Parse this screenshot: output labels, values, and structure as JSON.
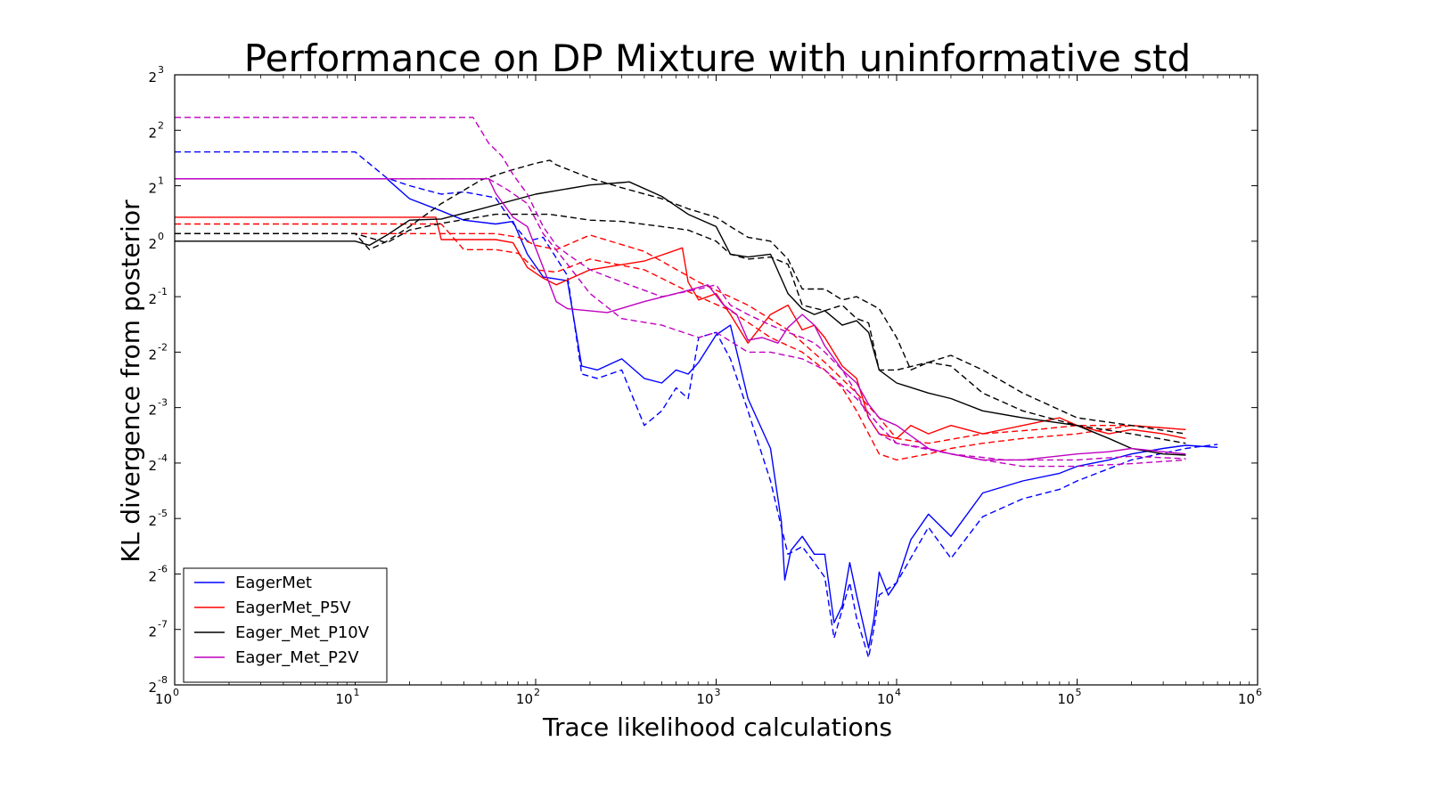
{
  "chart_data": {
    "type": "line",
    "title": "Performance on DP Mixture with uninformative std",
    "xlabel": "Trace likelihood calculations",
    "ylabel": "KL divergence from posterior",
    "x_scale": "log10",
    "y_scale": "log2",
    "xlim": [
      1,
      1000000
    ],
    "ylim": [
      0.00390625,
      8
    ],
    "x_ticks": [
      {
        "base": "10",
        "exp": "0"
      },
      {
        "base": "10",
        "exp": "1"
      },
      {
        "base": "10",
        "exp": "2"
      },
      {
        "base": "10",
        "exp": "3"
      },
      {
        "base": "10",
        "exp": "4"
      },
      {
        "base": "10",
        "exp": "5"
      },
      {
        "base": "10",
        "exp": "6"
      }
    ],
    "y_ticks": [
      {
        "base": "2",
        "exp": "-8"
      },
      {
        "base": "2",
        "exp": "-7"
      },
      {
        "base": "2",
        "exp": "-6"
      },
      {
        "base": "2",
        "exp": "-5"
      },
      {
        "base": "2",
        "exp": "-4"
      },
      {
        "base": "2",
        "exp": "-3"
      },
      {
        "base": "2",
        "exp": "-2"
      },
      {
        "base": "2",
        "exp": "-1"
      },
      {
        "base": "2",
        "exp": "0"
      },
      {
        "base": "2",
        "exp": "1"
      },
      {
        "base": "2",
        "exp": "2"
      },
      {
        "base": "2",
        "exp": "3"
      }
    ],
    "grid": false,
    "legend_position": "lower-left",
    "legend": [
      {
        "label": "EagerMet",
        "color": "#0000ff"
      },
      {
        "label": "EagerMet_P5V",
        "color": "#ff0000"
      },
      {
        "label": "Eager_Met_P10V",
        "color": "#000000"
      },
      {
        "label": "Eager_Met_P2V",
        "color": "#bf00bf"
      }
    ],
    "series": [
      {
        "name": "EagerMet",
        "color": "#0000ff",
        "dash": "solid",
        "x": [
          1,
          15,
          20,
          30,
          40,
          60,
          75,
          90,
          110,
          150,
          180,
          220,
          300,
          400,
          500,
          600,
          700,
          800,
          1000,
          1200,
          1500,
          2000,
          2300,
          2400,
          2600,
          3000,
          3500,
          4000,
          4500,
          5000,
          5500,
          6000,
          7000,
          7500,
          8000,
          9000,
          10000,
          12000,
          15000,
          20000,
          30000,
          50000,
          80000,
          100000,
          150000,
          200000,
          300000,
          400000,
          600000
        ],
        "y": [
          2.18,
          2.18,
          1.7,
          1.46,
          1.3,
          1.24,
          1.28,
          0.85,
          0.64,
          0.61,
          0.21,
          0.2,
          0.23,
          0.18,
          0.17,
          0.2,
          0.19,
          0.22,
          0.31,
          0.35,
          0.14,
          0.075,
          0.03,
          0.0145,
          0.021,
          0.025,
          0.02,
          0.02,
          0.0085,
          0.0105,
          0.018,
          0.012,
          0.0062,
          0.009,
          0.016,
          0.012,
          0.014,
          0.024,
          0.033,
          0.025,
          0.043,
          0.05,
          0.055,
          0.06,
          0.065,
          0.07,
          0.075,
          0.078,
          0.076
        ]
      },
      {
        "name": "EagerMet",
        "color": "#0000ff",
        "dash": "dashed",
        "x": [
          1,
          10,
          15,
          20,
          30,
          40,
          60,
          75,
          90,
          110,
          150,
          180,
          220,
          300,
          400,
          500,
          600,
          700,
          800,
          1000,
          1200,
          1500,
          2000,
          2300,
          2500,
          3000,
          3500,
          4000,
          4500,
          5000,
          5500,
          6000,
          7000,
          7500,
          8000,
          10000,
          15000,
          20000,
          30000,
          50000,
          80000,
          100000,
          200000,
          400000,
          600000
        ],
        "y": [
          3.05,
          3.05,
          2.2,
          2.0,
          1.8,
          1.85,
          1.72,
          1.25,
          1.0,
          1.05,
          0.65,
          0.19,
          0.18,
          0.2,
          0.1,
          0.12,
          0.16,
          0.14,
          0.3,
          0.32,
          0.23,
          0.12,
          0.05,
          0.028,
          0.02,
          0.022,
          0.018,
          0.015,
          0.007,
          0.01,
          0.014,
          0.009,
          0.0055,
          0.008,
          0.012,
          0.014,
          0.028,
          0.019,
          0.032,
          0.04,
          0.045,
          0.05,
          0.065,
          0.075,
          0.079
        ]
      },
      {
        "name": "EagerMet_P5V",
        "color": "#ff0000",
        "dash": "solid",
        "x": [
          1,
          28,
          30,
          60,
          75,
          90,
          110,
          130,
          200,
          400,
          650,
          700,
          800,
          1000,
          1200,
          1500,
          2000,
          2500,
          3000,
          3500,
          4000,
          5000,
          6000,
          7000,
          8000,
          10000,
          12000,
          15000,
          20000,
          30000,
          50000,
          80000,
          100000,
          150000,
          200000,
          300000,
          400000
        ],
        "y": [
          1.35,
          1.35,
          1.02,
          1.02,
          0.98,
          0.72,
          0.63,
          0.58,
          0.7,
          0.78,
          0.92,
          0.6,
          0.48,
          0.52,
          0.4,
          0.28,
          0.4,
          0.45,
          0.33,
          0.35,
          0.3,
          0.21,
          0.18,
          0.11,
          0.09,
          0.085,
          0.1,
          0.09,
          0.1,
          0.09,
          0.1,
          0.11,
          0.1,
          0.09,
          0.095,
          0.09,
          0.085
        ]
      },
      {
        "name": "EagerMet_P5V",
        "color": "#ff0000",
        "dash": "dashed",
        "x": [
          1,
          30,
          40,
          60,
          80,
          100,
          130,
          200,
          400,
          800,
          1200,
          2000,
          3000,
          4000,
          5000,
          6000,
          7000,
          8000,
          10000,
          15000,
          20000,
          30000,
          50000,
          100000,
          200000,
          400000
        ],
        "y": [
          1.24,
          1.24,
          0.9,
          0.9,
          0.86,
          0.7,
          0.68,
          0.8,
          0.7,
          0.5,
          0.42,
          0.3,
          0.25,
          0.2,
          0.16,
          0.12,
          0.09,
          0.07,
          0.065,
          0.07,
          0.075,
          0.08,
          0.085,
          0.09,
          0.1,
          0.095
        ]
      },
      {
        "name": "EagerMet_P5V",
        "color": "#ff0000",
        "dash": "dashed",
        "x": [
          1,
          60,
          80,
          100,
          130,
          200,
          400,
          800,
          1500,
          2500,
          4000,
          6000,
          8000,
          10000,
          15000,
          30000,
          60000,
          100000,
          200000,
          400000
        ],
        "y": [
          1.1,
          1.1,
          1.05,
          0.95,
          0.9,
          1.08,
          0.88,
          0.6,
          0.45,
          0.33,
          0.22,
          0.15,
          0.11,
          0.085,
          0.08,
          0.09,
          0.095,
          0.1,
          0.1,
          0.095
        ]
      },
      {
        "name": "Eager_Met_P10V",
        "color": "#000000",
        "dash": "solid",
        "x": [
          1,
          10,
          12,
          15,
          20,
          30,
          50,
          100,
          200,
          300,
          330,
          500,
          700,
          1000,
          1200,
          1500,
          2000,
          2500,
          3000,
          3500,
          4000,
          5000,
          6000,
          7000,
          8000,
          10000,
          15000,
          20000,
          30000,
          50000,
          100000,
          150000,
          200000,
          300000,
          400000
        ],
        "y": [
          1.0,
          1.0,
          0.95,
          1.08,
          1.3,
          1.32,
          1.5,
          1.8,
          2.02,
          2.08,
          2.1,
          1.75,
          1.4,
          1.2,
          0.85,
          0.82,
          0.85,
          0.52,
          0.43,
          0.4,
          0.42,
          0.35,
          0.37,
          0.32,
          0.2,
          0.17,
          0.15,
          0.14,
          0.12,
          0.11,
          0.1,
          0.085,
          0.075,
          0.07,
          0.069
        ]
      },
      {
        "name": "Eager_Met_P10V",
        "color": "#000000",
        "dash": "dashed",
        "x": [
          1,
          10,
          15,
          20,
          30,
          60,
          120,
          200,
          300,
          500,
          700,
          1000,
          1200,
          1500,
          2000,
          2500,
          3000,
          4000,
          5000,
          6000,
          7000,
          8000,
          10000,
          15000,
          20000,
          30000,
          50000,
          100000,
          200000,
          400000
        ],
        "y": [
          1.1,
          1.1,
          0.98,
          1.15,
          1.25,
          1.4,
          1.4,
          1.3,
          1.28,
          1.2,
          1.15,
          1.0,
          0.85,
          0.8,
          0.82,
          0.75,
          0.45,
          0.42,
          0.45,
          0.38,
          0.36,
          0.2,
          0.2,
          0.22,
          0.21,
          0.15,
          0.12,
          0.1,
          0.09,
          0.08
        ]
      },
      {
        "name": "Eager_Met_P10V",
        "color": "#000000",
        "dash": "dashed",
        "x": [
          1,
          10,
          12,
          15,
          20,
          30,
          50,
          70,
          100,
          120,
          130,
          200,
          300,
          500,
          700,
          1000,
          1200,
          1500,
          2000,
          2500,
          3000,
          4000,
          5000,
          6000,
          8000,
          10000,
          12000,
          15000,
          20000,
          30000,
          50000,
          100000,
          200000,
          400000
        ],
        "y": [
          1.1,
          1.1,
          0.9,
          1.0,
          1.2,
          1.6,
          2.15,
          2.4,
          2.65,
          2.75,
          2.6,
          2.2,
          1.95,
          1.7,
          1.5,
          1.35,
          1.2,
          1.05,
          1.0,
          0.8,
          0.55,
          0.55,
          0.48,
          0.5,
          0.43,
          0.3,
          0.2,
          0.22,
          0.24,
          0.2,
          0.15,
          0.11,
          0.1,
          0.09
        ]
      },
      {
        "name": "Eager_Met_P2V",
        "color": "#bf00bf",
        "dash": "solid",
        "x": [
          1,
          55,
          60,
          75,
          90,
          110,
          130,
          150,
          250,
          400,
          600,
          900,
          1100,
          1300,
          1500,
          1800,
          2200,
          2500,
          3000,
          3500,
          4000,
          5000,
          6000,
          7000,
          8000,
          10000,
          15000,
          20000,
          30000,
          50000,
          100000,
          150000,
          200000,
          300000,
          400000
        ],
        "y": [
          2.18,
          2.18,
          1.82,
          1.35,
          1.2,
          0.72,
          0.47,
          0.43,
          0.41,
          0.47,
          0.52,
          0.58,
          0.45,
          0.4,
          0.29,
          0.3,
          0.28,
          0.34,
          0.4,
          0.35,
          0.27,
          0.2,
          0.17,
          0.13,
          0.11,
          0.1,
          0.075,
          0.07,
          0.065,
          0.065,
          0.07,
          0.072,
          0.075,
          0.072,
          0.07
        ]
      },
      {
        "name": "Eager_Met_P2V",
        "color": "#bf00bf",
        "dash": "dashed",
        "x": [
          1,
          45,
          55,
          65,
          75,
          90,
          110,
          130,
          150,
          200,
          300,
          500,
          800,
          1000,
          1200,
          1500,
          2000,
          2500,
          3000,
          3500,
          4000,
          5000,
          6000,
          7000,
          8000,
          10000,
          15000,
          20000,
          30000,
          50000,
          100000,
          200000,
          400000
        ],
        "y": [
          4.7,
          4.7,
          3.4,
          2.9,
          2.3,
          1.8,
          1.2,
          0.95,
          0.85,
          0.7,
          0.6,
          0.5,
          0.55,
          0.58,
          0.45,
          0.4,
          0.35,
          0.32,
          0.3,
          0.28,
          0.25,
          0.2,
          0.15,
          0.11,
          0.09,
          0.08,
          0.075,
          0.07,
          0.065,
          0.06,
          0.06,
          0.062,
          0.065
        ]
      },
      {
        "name": "Eager_Met_P2V",
        "color": "#bf00bf",
        "dash": "dashed",
        "x": [
          1,
          55,
          70,
          90,
          110,
          150,
          200,
          300,
          500,
          800,
          1000,
          1500,
          2000,
          3000,
          4000,
          6000,
          8000,
          10000,
          20000,
          40000,
          100000,
          200000,
          400000
        ],
        "y": [
          2.18,
          2.18,
          1.9,
          1.6,
          1.1,
          0.75,
          0.52,
          0.38,
          0.35,
          0.3,
          0.32,
          0.25,
          0.25,
          0.23,
          0.2,
          0.14,
          0.1,
          0.08,
          0.07,
          0.065,
          0.065,
          0.068,
          0.066
        ]
      }
    ]
  }
}
